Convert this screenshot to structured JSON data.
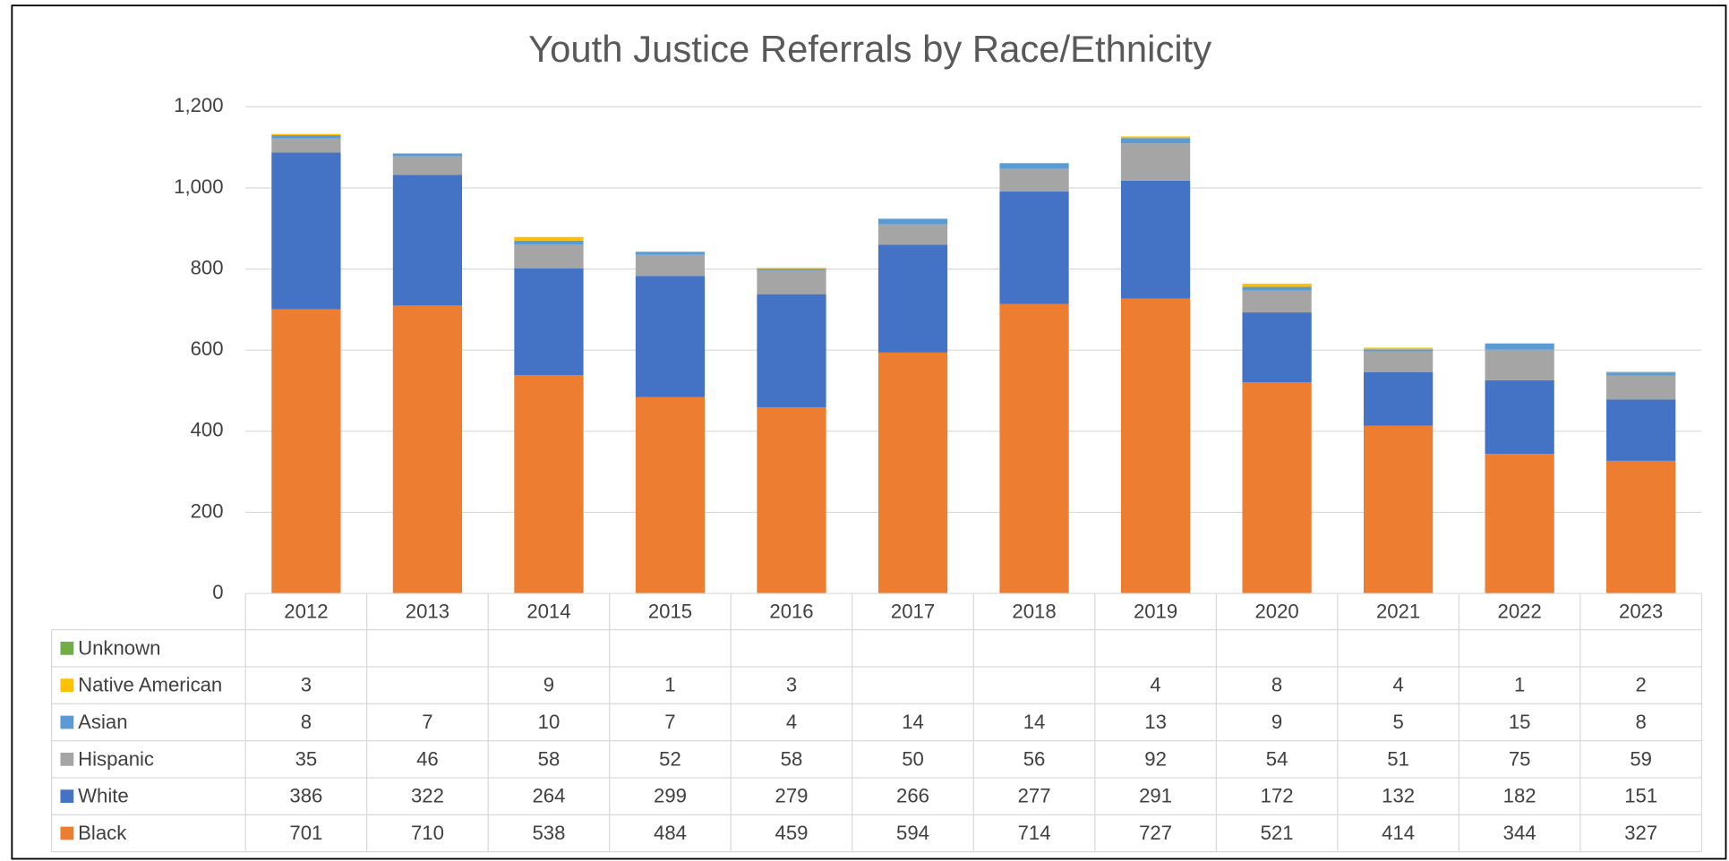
{
  "chart_data": {
    "type": "bar",
    "stacked": true,
    "title": "Youth Justice Referrals by Race/Ethnicity",
    "categories": [
      "2012",
      "2013",
      "2014",
      "2015",
      "2016",
      "2017",
      "2018",
      "2019",
      "2020",
      "2021",
      "2022",
      "2023"
    ],
    "series": [
      {
        "name": "Black",
        "color": "#ed7d31",
        "values": [
          701,
          710,
          538,
          484,
          459,
          594,
          714,
          727,
          521,
          414,
          344,
          327
        ]
      },
      {
        "name": "White",
        "color": "#4472c4",
        "values": [
          386,
          322,
          264,
          299,
          279,
          266,
          277,
          291,
          172,
          132,
          182,
          151
        ]
      },
      {
        "name": "Hispanic",
        "color": "#a5a5a5",
        "values": [
          35,
          46,
          58,
          52,
          58,
          50,
          56,
          92,
          54,
          51,
          75,
          59
        ]
      },
      {
        "name": "Asian",
        "color": "#5b9bd5",
        "values": [
          8,
          7,
          10,
          7,
          4,
          14,
          14,
          13,
          9,
          5,
          15,
          8
        ]
      },
      {
        "name": "Native American",
        "color": "#ffc000",
        "values": [
          3,
          null,
          9,
          1,
          3,
          null,
          null,
          4,
          8,
          4,
          1,
          2
        ]
      },
      {
        "name": "Unknown",
        "color": "#70ad47",
        "values": [
          null,
          null,
          null,
          null,
          null,
          null,
          null,
          null,
          null,
          null,
          null,
          null
        ]
      }
    ],
    "ylim": [
      0,
      1200
    ],
    "yticks": [
      0,
      200,
      400,
      600,
      800,
      {
        "value": 1000,
        "label": "1,000"
      },
      {
        "value": 1200,
        "label": "1,200"
      }
    ],
    "grid": true,
    "data_table": true
  }
}
